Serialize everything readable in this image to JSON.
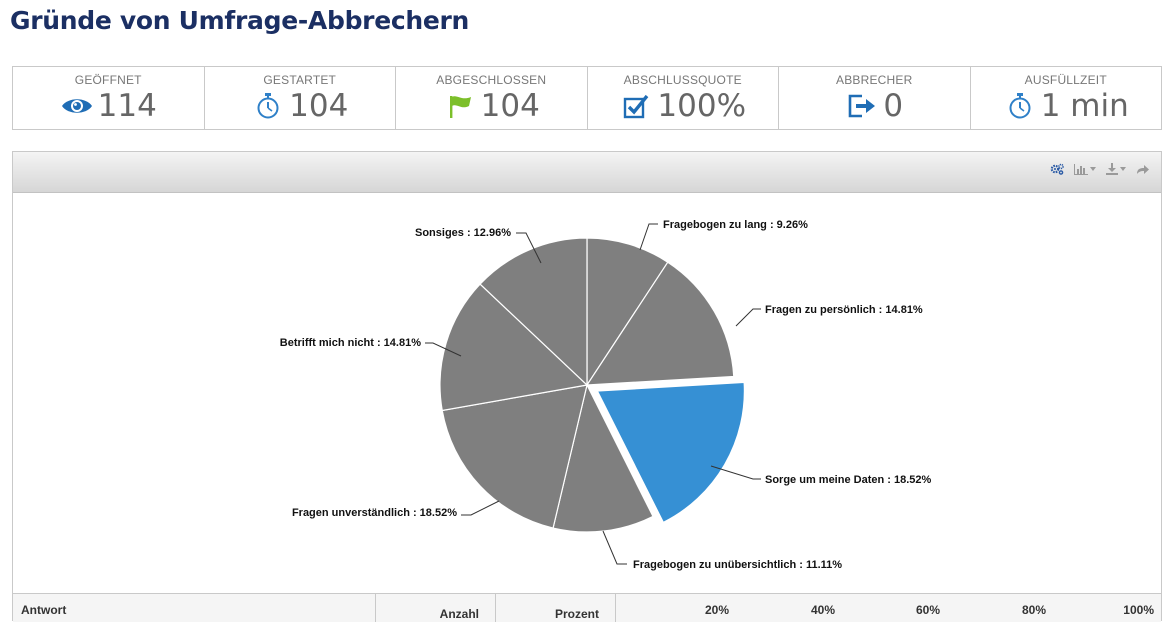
{
  "page": {
    "title": "Gründe von Umfrage-Abbrechern"
  },
  "stats": [
    {
      "label": "GEÖFFNET",
      "value": "114",
      "icon": "eye-icon",
      "color": "#1f6db5"
    },
    {
      "label": "GESTARTET",
      "value": "104",
      "icon": "stopwatch-icon",
      "color": "#2f80c8"
    },
    {
      "label": "ABGESCHLOSSEN",
      "value": "104",
      "icon": "flag-icon",
      "color": "#7cbf2a"
    },
    {
      "label": "ABSCHLUSSQUOTE",
      "value": "100%",
      "icon": "checkbox-icon",
      "color": "#1f6db5"
    },
    {
      "label": "ABBRECHER",
      "value": "0",
      "icon": "exit-icon",
      "color": "#1f6db5"
    },
    {
      "label": "AUSFÜLLZEIT",
      "value": "1 min",
      "icon": "stopwatch-icon",
      "color": "#2f80c8"
    }
  ],
  "toolbar": {
    "icons": [
      "settings-icon",
      "chart-type-icon",
      "download-icon",
      "share-icon"
    ]
  },
  "chart_data": {
    "type": "pie",
    "slices": [
      {
        "label": "Fragebogen zu lang",
        "value": 9.26,
        "display": "Fragebogen zu lang : 9.26%",
        "highlighted": false
      },
      {
        "label": "Fragen zu persönlich",
        "value": 14.81,
        "display": "Fragen zu persönlich : 14.81%",
        "highlighted": false
      },
      {
        "label": "Sorge um meine Daten",
        "value": 18.52,
        "display": "Sorge um meine Daten : 18.52%",
        "highlighted": true
      },
      {
        "label": "Fragebogen zu unübersichtlich",
        "value": 11.11,
        "display": "Fragebogen zu unübersichtlich : 11.11%",
        "highlighted": false
      },
      {
        "label": "Fragen unverständlich",
        "value": 18.52,
        "display": "Fragen unverständlich : 18.52%",
        "highlighted": false
      },
      {
        "label": "Betrifft mich nicht",
        "value": 14.81,
        "display": "Betrifft mich nicht : 14.81%",
        "highlighted": false
      },
      {
        "label": "Sonsiges",
        "value": 12.96,
        "display": "Sonsiges : 12.96%",
        "highlighted": false
      }
    ],
    "colors": {
      "default": "#7f7f7f",
      "highlight": "#3690d4"
    }
  },
  "table": {
    "headers": {
      "answer": "Antwort",
      "count": "Anzahl",
      "percent": "Prozent"
    },
    "scale": [
      "20%",
      "40%",
      "60%",
      "80%",
      "100%"
    ]
  }
}
